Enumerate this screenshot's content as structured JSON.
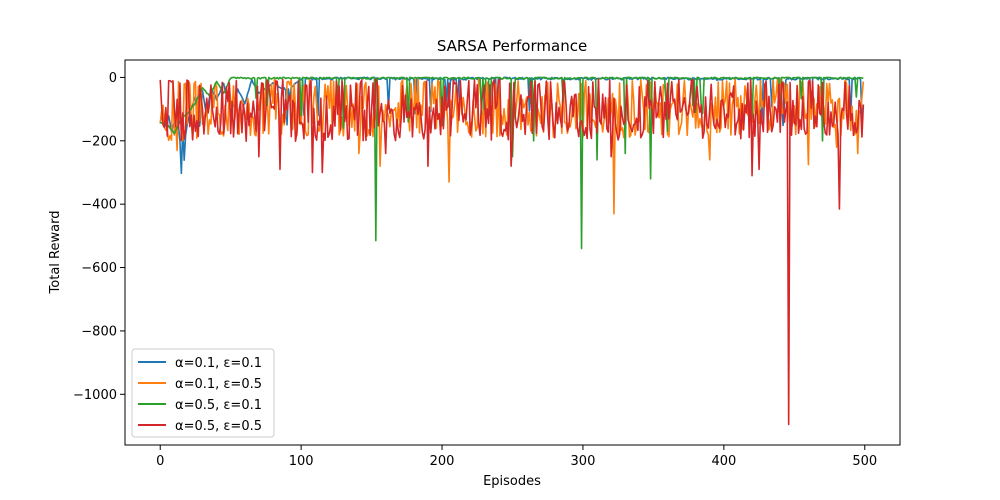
{
  "chart_data": {
    "type": "line",
    "title": "SARSA Performance",
    "xlabel": "Episodes",
    "ylabel": "Total Reward",
    "xlim": [
      -25,
      525
    ],
    "ylim": [
      -1160,
      55
    ],
    "x_ticks": [
      0,
      100,
      200,
      300,
      400,
      500
    ],
    "y_ticks": [
      0,
      -200,
      -400,
      -600,
      -800,
      -1000
    ],
    "x_tick_labels": [
      "0",
      "100",
      "200",
      "300",
      "400",
      "500"
    ],
    "y_tick_labels": [
      "0",
      "−200",
      "−400",
      "−600",
      "−800",
      "−1000"
    ],
    "grid": false,
    "legend_position": "lower-left",
    "series": [
      {
        "name": "α=0.1, ε=0.1",
        "color": "#1f77b4",
        "keypoints": [
          [
            0,
            -140
          ],
          [
            2,
            -110
          ],
          [
            4,
            -150
          ],
          [
            6,
            -120
          ],
          [
            8,
            -170
          ],
          [
            10,
            -140
          ],
          [
            12,
            -110
          ],
          [
            14,
            -200
          ],
          [
            15,
            -305
          ],
          [
            16,
            -160
          ],
          [
            17,
            -260
          ],
          [
            18,
            -180
          ],
          [
            20,
            -130
          ],
          [
            22,
            -100
          ],
          [
            25,
            -60
          ],
          [
            28,
            -150
          ],
          [
            30,
            -40
          ],
          [
            33,
            -120
          ],
          [
            36,
            -30
          ],
          [
            40,
            -70
          ],
          [
            45,
            -20
          ],
          [
            50,
            -110
          ],
          [
            55,
            -40
          ],
          [
            60,
            -80
          ],
          [
            65,
            -10
          ],
          [
            70,
            -50
          ],
          [
            80,
            -20
          ],
          [
            90,
            -40
          ],
          [
            100,
            -5
          ],
          [
            150,
            -3
          ],
          [
            200,
            -5
          ],
          [
            250,
            -3
          ],
          [
            300,
            -5
          ],
          [
            350,
            -3
          ],
          [
            400,
            -5
          ],
          [
            440,
            -3
          ],
          [
            442,
            -150
          ],
          [
            444,
            -5
          ],
          [
            480,
            -3
          ],
          [
            497,
            -3
          ],
          [
            498,
            -130
          ]
        ],
        "base": -3,
        "amp": 4,
        "spikes": [],
        "seed": 11
      },
      {
        "name": "α=0.1, ε=0.5",
        "color": "#ff7f0e",
        "keypoints": [
          [
            0,
            -110
          ],
          [
            5,
            -130
          ],
          [
            10,
            -180
          ],
          [
            12,
            -220
          ],
          [
            15,
            -150
          ],
          [
            20,
            -140
          ],
          [
            30,
            -120
          ],
          [
            60,
            -120
          ],
          [
            100,
            -120
          ],
          [
            150,
            -120
          ],
          [
            200,
            -120
          ],
          [
            250,
            -120
          ],
          [
            300,
            -120
          ],
          [
            350,
            -120
          ],
          [
            400,
            -120
          ],
          [
            450,
            -120
          ],
          [
            499,
            -120
          ]
        ],
        "base": -120,
        "amp": 70,
        "spikes": [
          [
            205,
            -330
          ],
          [
            322,
            -430
          ],
          [
            156,
            -280
          ],
          [
            141,
            -240
          ],
          [
            250,
            -200
          ],
          [
            390,
            -260
          ],
          [
            480,
            -220
          ],
          [
            495,
            -240
          ],
          [
            460,
            -275
          ]
        ],
        "seed": 23
      },
      {
        "name": "α=0.5, ε=0.1",
        "color": "#2ca02c",
        "keypoints": [
          [
            0,
            -140
          ],
          [
            5,
            -150
          ],
          [
            10,
            -175
          ],
          [
            15,
            -130
          ],
          [
            20,
            -110
          ],
          [
            25,
            -80
          ],
          [
            30,
            -30
          ],
          [
            35,
            -60
          ],
          [
            40,
            -10
          ],
          [
            45,
            -50
          ],
          [
            50,
            -2
          ],
          [
            499,
            -2
          ]
        ],
        "base": -2,
        "amp": 3,
        "spikes": [
          [
            153,
            -515
          ],
          [
            299,
            -540
          ],
          [
            348,
            -320
          ],
          [
            310,
            -260
          ],
          [
            250,
            -250
          ],
          [
            130,
            -160
          ],
          [
            176,
            -140
          ],
          [
            200,
            -150
          ],
          [
            265,
            -200
          ],
          [
            330,
            -240
          ],
          [
            360,
            -170
          ],
          [
            420,
            -130
          ],
          [
            470,
            -200
          ],
          [
            440,
            -130
          ],
          [
            380,
            -110
          ],
          [
            230,
            -100
          ],
          [
            100,
            -120
          ]
        ],
        "seed": 37
      },
      {
        "name": "α=0.5, ε=0.5",
        "color": "#d62728",
        "keypoints": [
          [
            0,
            -110
          ],
          [
            10,
            -120
          ],
          [
            20,
            -130
          ],
          [
            499,
            -120
          ]
        ],
        "base": -125,
        "amp": 75,
        "spikes": [
          [
            446,
            -1095
          ],
          [
            482,
            -415
          ],
          [
            420,
            -310
          ],
          [
            425,
            -290
          ],
          [
            85,
            -290
          ],
          [
            108,
            -300
          ],
          [
            115,
            -300
          ],
          [
            249,
            -280
          ],
          [
            190,
            -280
          ],
          [
            70,
            -250
          ],
          [
            320,
            -250
          ],
          [
            160,
            -240
          ]
        ],
        "seed": 53
      }
    ]
  }
}
